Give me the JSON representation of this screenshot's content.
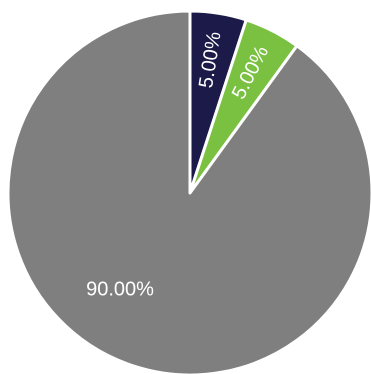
{
  "chart_data": {
    "type": "pie",
    "title": "",
    "slices": [
      {
        "label": "5.00%",
        "value": 5,
        "color": "#1b1a48"
      },
      {
        "label": "5.00%",
        "value": 5,
        "color": "#7ac142"
      },
      {
        "label": "90.00%",
        "value": 90,
        "color": "#7f7f7f"
      }
    ],
    "start_angle_deg": 0,
    "direction": "clockwise",
    "legend": "none"
  }
}
